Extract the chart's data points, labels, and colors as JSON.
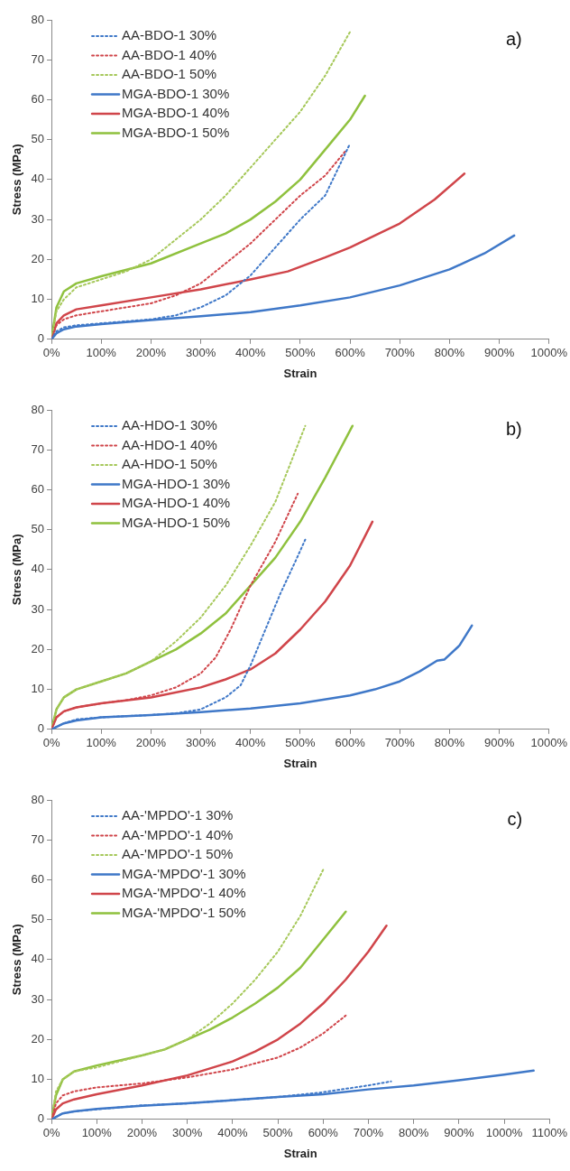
{
  "chart_data": [
    {
      "type": "line",
      "xlabel": "Strain",
      "ylabel": "Stress (MPa)",
      "annotations": [
        "a)"
      ],
      "legend": "top left",
      "grid": false,
      "marker": "none",
      "xlim": [
        0,
        1000
      ],
      "xticks": [
        {
          "value": 0,
          "label": "0%"
        },
        {
          "value": 100,
          "label": "100%"
        },
        {
          "value": 200,
          "label": "200%"
        },
        {
          "value": 300,
          "label": "300%"
        },
        {
          "value": 400,
          "label": "400%"
        },
        {
          "value": 500,
          "label": "500%"
        },
        {
          "value": 600,
          "label": "600%"
        },
        {
          "value": 700,
          "label": "700%"
        },
        {
          "value": 800,
          "label": "800%"
        },
        {
          "value": 900,
          "label": "900%"
        },
        {
          "value": 1000,
          "label": "1000%"
        }
      ],
      "ylim": [
        0,
        80
      ],
      "yticks": [
        0,
        10,
        20,
        30,
        40,
        50,
        60,
        70,
        80
      ],
      "series": [
        {
          "name": "AA-BDO-1 30%",
          "color": "#3f78c8",
          "line_style": "dotted",
          "x": [
            0,
            10,
            25,
            50,
            100,
            150,
            200,
            250,
            300,
            350,
            400,
            450,
            500,
            550,
            600
          ],
          "values": [
            0,
            2,
            3,
            3.5,
            4,
            4.5,
            5,
            6,
            8,
            11,
            16,
            23,
            30,
            36,
            49
          ]
        },
        {
          "name": "AA-BDO-1 40%",
          "color": "#d0454a",
          "line_style": "dotted",
          "x": [
            0,
            10,
            25,
            50,
            100,
            150,
            200,
            250,
            300,
            350,
            400,
            450,
            500,
            550,
            590
          ],
          "values": [
            0,
            3.5,
            5,
            6,
            7,
            8,
            9,
            11,
            14,
            19,
            24,
            30,
            36,
            41,
            47
          ]
        },
        {
          "name": "AA-BDO-1 50%",
          "color": "#a6c85a",
          "line_style": "dotted",
          "x": [
            0,
            10,
            25,
            50,
            100,
            150,
            200,
            250,
            300,
            350,
            400,
            450,
            500,
            550,
            600
          ],
          "values": [
            0,
            7,
            10,
            13,
            15,
            17,
            20,
            25,
            30,
            36,
            43,
            50,
            57,
            66,
            77
          ]
        },
        {
          "name": "MGA-BDO-1 30%",
          "color": "#3f78c8",
          "line_style": "solid",
          "x": [
            0,
            10,
            25,
            50,
            100,
            200,
            300,
            400,
            500,
            600,
            700,
            800,
            870,
            930
          ],
          "values": [
            0,
            1.5,
            2.5,
            3.2,
            3.8,
            4.8,
            5.8,
            6.8,
            8.5,
            10.5,
            13.5,
            17.5,
            21.5,
            26
          ]
        },
        {
          "name": "MGA-BDO-1 40%",
          "color": "#d0454a",
          "line_style": "solid",
          "x": [
            0,
            10,
            25,
            50,
            100,
            200,
            300,
            400,
            475,
            550,
            600,
            700,
            770,
            830
          ],
          "values": [
            0,
            4,
            6,
            7.5,
            8.5,
            10.5,
            12.5,
            15,
            17,
            20.5,
            23,
            29,
            35,
            41.5
          ]
        },
        {
          "name": "MGA-BDO-1 50%",
          "color": "#8fc13e",
          "line_style": "solid",
          "x": [
            0,
            10,
            25,
            50,
            100,
            200,
            300,
            350,
            400,
            450,
            500,
            560,
            600,
            630
          ],
          "values": [
            0,
            8,
            12,
            14,
            15.8,
            19,
            24,
            26.5,
            30,
            34.5,
            40,
            49,
            55,
            61
          ]
        }
      ]
    },
    {
      "type": "line",
      "xlabel": "Strain",
      "ylabel": "Stress (MPa)",
      "annotations": [
        "b)"
      ],
      "legend": "top left",
      "grid": false,
      "marker": "none",
      "xlim": [
        0,
        1000
      ],
      "xticks": [
        {
          "value": 0,
          "label": "0%"
        },
        {
          "value": 100,
          "label": "100%"
        },
        {
          "value": 200,
          "label": "200%"
        },
        {
          "value": 300,
          "label": "300%"
        },
        {
          "value": 400,
          "label": "400%"
        },
        {
          "value": 500,
          "label": "500%"
        },
        {
          "value": 600,
          "label": "600%"
        },
        {
          "value": 700,
          "label": "700%"
        },
        {
          "value": 800,
          "label": "800%"
        },
        {
          "value": 900,
          "label": "900%"
        },
        {
          "value": 1000,
          "label": "1000%"
        }
      ],
      "ylim": [
        0,
        80
      ],
      "yticks": [
        0,
        10,
        20,
        30,
        40,
        50,
        60,
        70,
        80
      ],
      "series": [
        {
          "name": "AA-HDO-1 30%",
          "color": "#3f78c8",
          "line_style": "dotted",
          "x": [
            0,
            25,
            50,
            100,
            200,
            250,
            300,
            350,
            380,
            400,
            430,
            460,
            490,
            510
          ],
          "values": [
            0,
            1.5,
            2.5,
            3,
            3.6,
            4,
            5,
            8,
            11,
            16,
            25,
            34,
            42,
            47.5
          ]
        },
        {
          "name": "AA-HDO-1 40%",
          "color": "#d0454a",
          "line_style": "dotted",
          "x": [
            0,
            10,
            25,
            50,
            100,
            150,
            200,
            250,
            300,
            330,
            360,
            400,
            450,
            495
          ],
          "values": [
            0,
            3,
            4.5,
            5.5,
            6.5,
            7.3,
            8.5,
            10.5,
            14,
            18,
            25,
            36,
            47,
            59
          ]
        },
        {
          "name": "AA-HDO-1 50%",
          "color": "#a6c85a",
          "line_style": "dotted",
          "x": [
            0,
            10,
            25,
            50,
            100,
            150,
            200,
            250,
            300,
            350,
            400,
            450,
            510
          ],
          "values": [
            0,
            5,
            8,
            10,
            12,
            14,
            17,
            22,
            28,
            36,
            46,
            57,
            76
          ]
        },
        {
          "name": "MGA-HDO-1 30%",
          "color": "#3f78c8",
          "line_style": "solid",
          "x": [
            0,
            25,
            50,
            100,
            200,
            300,
            400,
            500,
            600,
            650,
            700,
            740,
            775,
            790,
            820,
            845
          ],
          "values": [
            0,
            1.5,
            2.2,
            3,
            3.6,
            4.3,
            5.2,
            6.5,
            8.5,
            10,
            12,
            14.5,
            17.2,
            17.5,
            21,
            26
          ]
        },
        {
          "name": "MGA-HDO-1 40%",
          "color": "#d0454a",
          "line_style": "solid",
          "x": [
            0,
            10,
            25,
            50,
            100,
            200,
            300,
            350,
            400,
            450,
            500,
            550,
            600,
            645
          ],
          "values": [
            0,
            3,
            4.5,
            5.5,
            6.5,
            8,
            10.5,
            12.5,
            15,
            19,
            25,
            32,
            41,
            52
          ]
        },
        {
          "name": "MGA-HDO-1 50%",
          "color": "#8fc13e",
          "line_style": "solid",
          "x": [
            0,
            10,
            25,
            50,
            100,
            150,
            200,
            250,
            300,
            350,
            400,
            450,
            500,
            550,
            605
          ],
          "values": [
            0,
            5,
            8,
            10,
            12,
            14,
            17,
            20,
            24,
            29,
            36,
            43,
            52,
            63,
            76
          ]
        }
      ]
    },
    {
      "type": "line",
      "xlabel": "Strain",
      "ylabel": "Stress (MPa)",
      "annotations": [
        "c)"
      ],
      "legend": "top left",
      "grid": false,
      "marker": "none",
      "xlim": [
        0,
        1100
      ],
      "xticks": [
        {
          "value": 0,
          "label": "0%"
        },
        {
          "value": 100,
          "label": "100%"
        },
        {
          "value": 200,
          "label": "200%"
        },
        {
          "value": 300,
          "label": "300%"
        },
        {
          "value": 400,
          "label": "400%"
        },
        {
          "value": 500,
          "label": "500%"
        },
        {
          "value": 600,
          "label": "600%"
        },
        {
          "value": 700,
          "label": "700%"
        },
        {
          "value": 800,
          "label": "800%"
        },
        {
          "value": 900,
          "label": "900%"
        },
        {
          "value": 1000,
          "label": "1000%"
        },
        {
          "value": 1100,
          "label": "1100%"
        }
      ],
      "ylim": [
        0,
        80
      ],
      "yticks": [
        0,
        10,
        20,
        30,
        40,
        50,
        60,
        70,
        80
      ],
      "series": [
        {
          "name": "AA-'MPDO'-1 30%",
          "color": "#3f78c8",
          "line_style": "dotted",
          "x": [
            0,
            25,
            50,
            100,
            200,
            300,
            400,
            500,
            600,
            700,
            750
          ],
          "values": [
            0,
            1.5,
            2,
            2.5,
            3.5,
            4,
            4.8,
            5.6,
            6.8,
            8.5,
            9.5
          ]
        },
        {
          "name": "AA-'MPDO'-1 40%",
          "color": "#d0454a",
          "line_style": "dotted",
          "x": [
            0,
            10,
            25,
            50,
            100,
            200,
            300,
            400,
            500,
            550,
            600,
            650
          ],
          "values": [
            0,
            4,
            6,
            7,
            8,
            9,
            10.5,
            12.5,
            15.5,
            18,
            21.5,
            26
          ]
        },
        {
          "name": "AA-'MPDO'-1 50%",
          "color": "#a6c85a",
          "line_style": "dotted",
          "x": [
            0,
            10,
            25,
            50,
            100,
            200,
            250,
            300,
            350,
            400,
            450,
            500,
            550,
            600
          ],
          "values": [
            0,
            7,
            10,
            12,
            13,
            16,
            17.5,
            20,
            24,
            29,
            35,
            42,
            51,
            62.5
          ]
        },
        {
          "name": "MGA-'MPDO'-1 30%",
          "color": "#3f78c8",
          "line_style": "solid",
          "x": [
            0,
            25,
            50,
            100,
            200,
            300,
            400,
            500,
            600,
            700,
            800,
            900,
            1000,
            1065
          ],
          "values": [
            0,
            1.5,
            2,
            2.6,
            3.4,
            4,
            4.8,
            5.6,
            6.3,
            7.5,
            8.5,
            9.8,
            11.2,
            12.2
          ]
        },
        {
          "name": "MGA-'MPDO'-1 40%",
          "color": "#d0454a",
          "line_style": "solid",
          "x": [
            0,
            10,
            25,
            50,
            100,
            200,
            300,
            400,
            450,
            500,
            550,
            600,
            650,
            700,
            740
          ],
          "values": [
            0,
            2.5,
            4,
            5,
            6.3,
            8.5,
            11,
            14.5,
            17,
            20,
            24,
            29,
            35,
            42,
            48.5
          ]
        },
        {
          "name": "MGA-'MPDO'-1 50%",
          "color": "#8fc13e",
          "line_style": "solid",
          "x": [
            0,
            10,
            25,
            50,
            100,
            200,
            250,
            300,
            350,
            400,
            450,
            500,
            550,
            600,
            650
          ],
          "values": [
            0,
            6,
            10,
            12,
            13.5,
            16,
            17.5,
            20,
            22.5,
            25.5,
            29,
            33,
            38,
            45,
            52
          ]
        }
      ]
    }
  ]
}
